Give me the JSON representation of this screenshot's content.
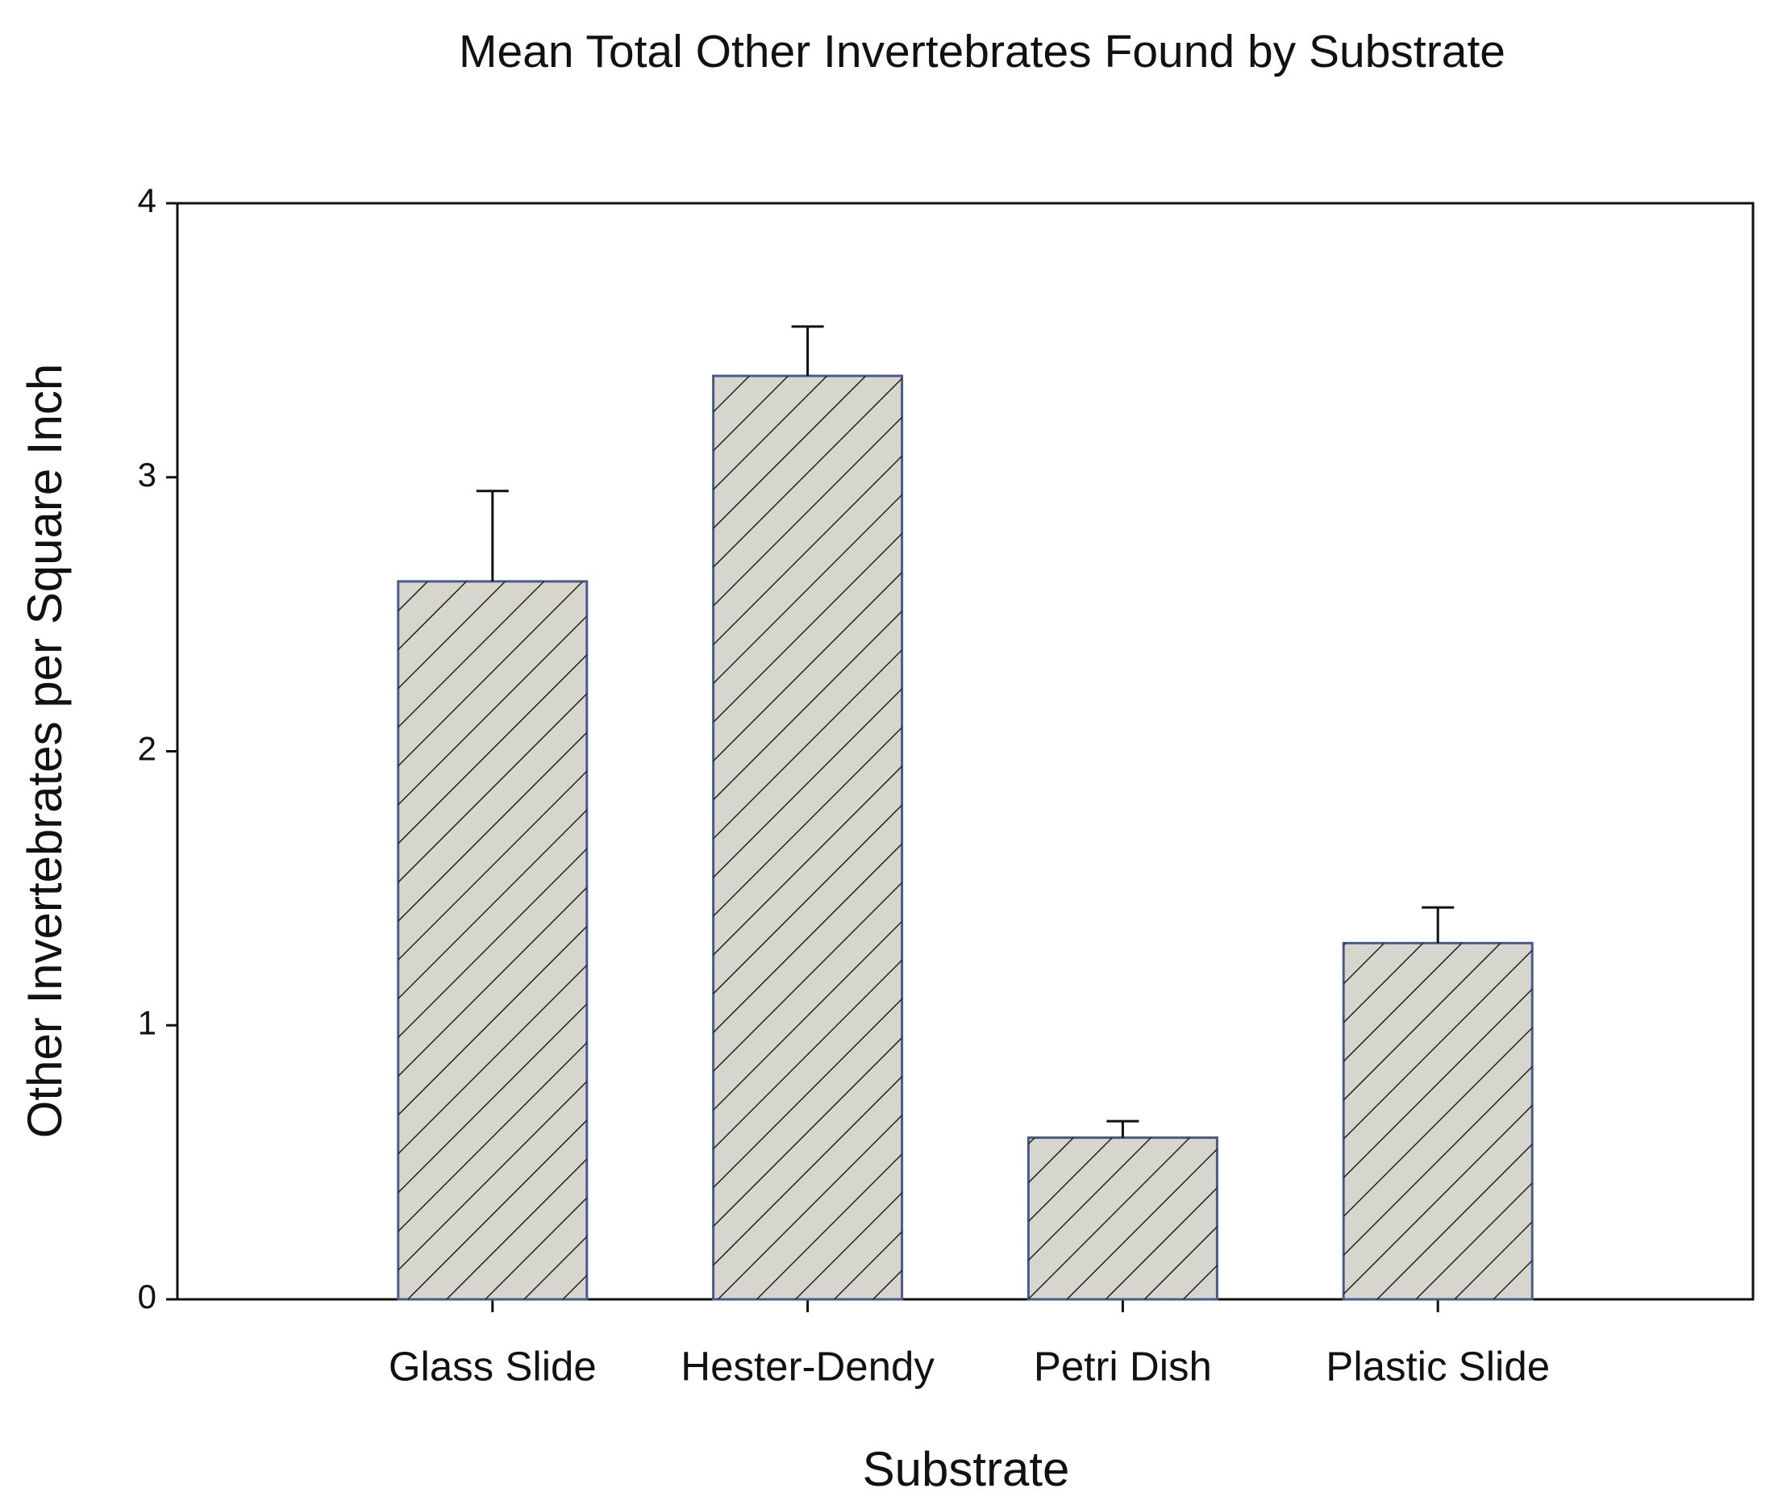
{
  "chart_data": {
    "type": "bar",
    "title": "Mean Total Other Invertebrates Found by Substrate",
    "x_label": "Substrate",
    "y_label": "Other Invertebrates per Square Inch",
    "categories": [
      "Glass Slide",
      "Hester-Dendy",
      "Petri Dish",
      "Plastic Slide"
    ],
    "values": [
      2.62,
      3.37,
      0.59,
      1.3
    ],
    "errors": [
      0.33,
      0.18,
      0.06,
      0.13
    ],
    "color": "#d6d6ce",
    "ylim": [
      0,
      4
    ],
    "yticks": [
      0,
      1,
      2,
      3,
      4
    ],
    "grid": false
  }
}
